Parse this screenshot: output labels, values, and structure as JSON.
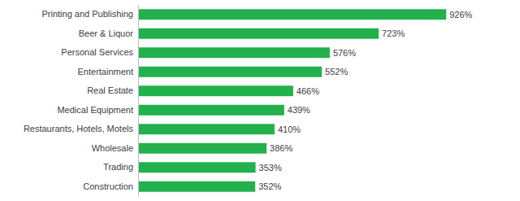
{
  "chart_data": {
    "type": "bar",
    "orientation": "horizontal",
    "categories": [
      "Construction",
      "Trading",
      "Wholesale",
      "Restaurants, Hotels, Motels",
      "Medical Equipment",
      "Real Estate",
      "Entertainment",
      "Personal Services",
      "Beer & Liquor",
      "Printing and Publishing"
    ],
    "values": [
      352,
      353,
      386,
      410,
      439,
      466,
      552,
      576,
      723,
      926
    ],
    "value_labels": [
      "352%",
      "353%",
      "386%",
      "410%",
      "439%",
      "466%",
      "552%",
      "576%",
      "723%",
      "926%"
    ],
    "color": "#22b14c",
    "xlim": [
      0,
      1050
    ],
    "data_labels": true,
    "tick_labels": "y",
    "grid": false
  }
}
